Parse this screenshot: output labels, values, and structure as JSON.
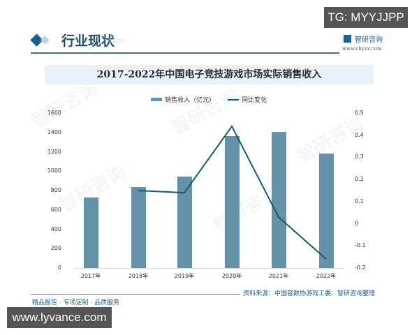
{
  "badges": {
    "tg": "TG: MYYJJPP",
    "site": "www.lyvance.com"
  },
  "header": {
    "section_title": "行业现状",
    "section_subtitle": "Status",
    "brand_name": "智研咨询",
    "brand_url": "www.chyxx.com"
  },
  "legend": {
    "bar_label": "销售收入（亿元）",
    "line_label": "同比变化"
  },
  "footer": {
    "left_text": "精品报告 · 专项定制 · 品质服务",
    "source": "资料来源：中国音数协游戏工委、智研咨询整理"
  },
  "watermark": "智研咨询",
  "axes": {
    "left_ticks": [
      "1600",
      "1400",
      "1200",
      "1000",
      "800",
      "600",
      "400",
      "200",
      "0"
    ],
    "right_ticks": [
      "0.5",
      "0.4",
      "0.3",
      "0.2",
      "0.1",
      "0",
      "-0.1",
      "-0.2"
    ]
  },
  "chart_data": {
    "type": "bar",
    "title": "2017-2022年中国电子竞技游戏市场实际销售收入",
    "categories": [
      "2017年",
      "2018年",
      "2019年",
      "2020年",
      "2021年",
      "2022年"
    ],
    "series": [
      {
        "name": "销售收入（亿元）",
        "type": "bar",
        "axis": "left",
        "values": [
          725,
          834,
          947,
          1365,
          1402,
          1179
        ]
      },
      {
        "name": "同比变化",
        "type": "line",
        "axis": "right",
        "values": [
          null,
          0.15,
          0.14,
          0.44,
          0.03,
          -0.16
        ]
      }
    ],
    "xlabel": "",
    "ylabel": "",
    "ylim": [
      0,
      1600
    ],
    "y2lim": [
      -0.2,
      0.5
    ],
    "grid": false,
    "legend_position": "top",
    "colors": {
      "bar": "#6592a8",
      "line": "#135a6d"
    }
  }
}
